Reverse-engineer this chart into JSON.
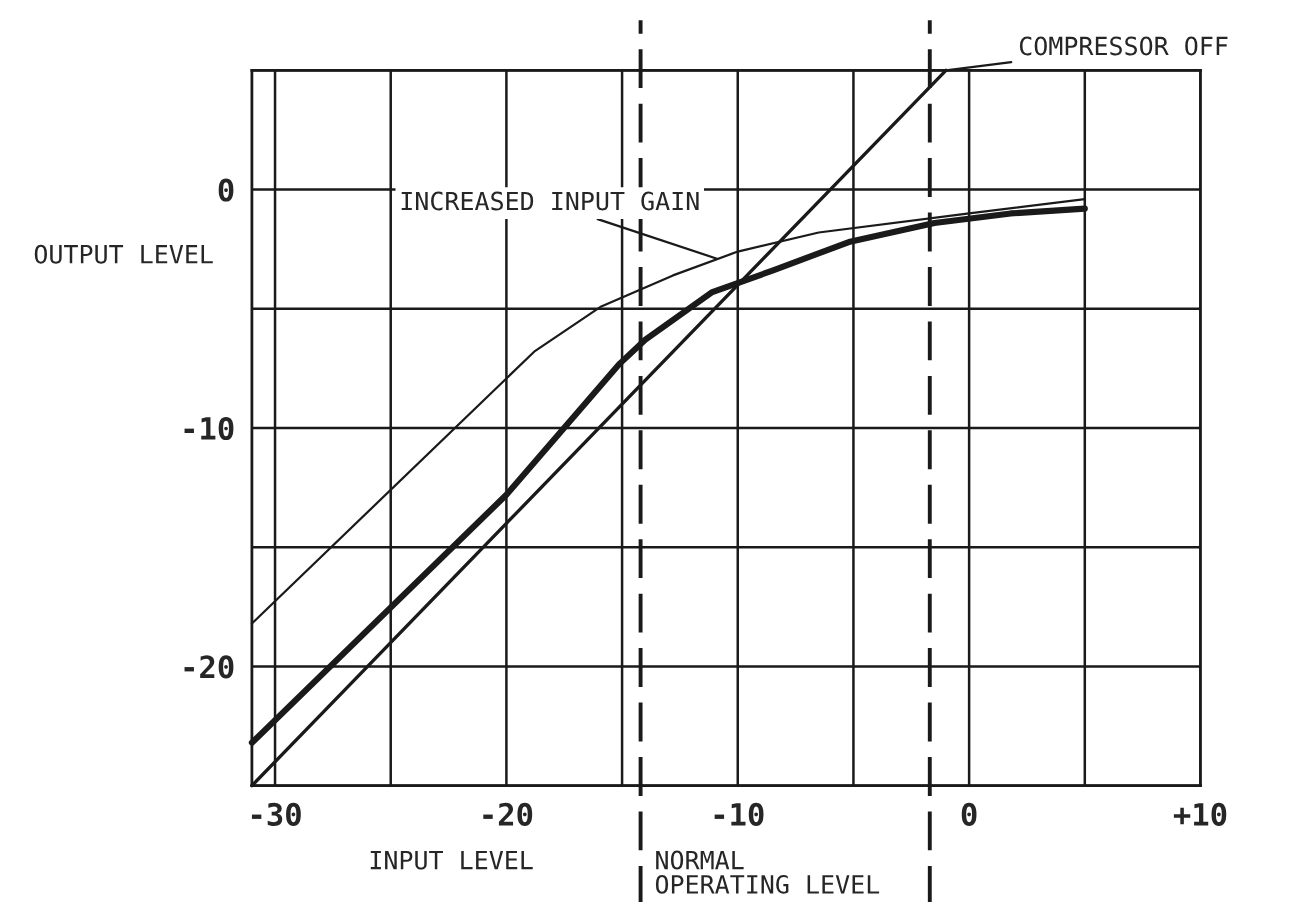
{
  "chart_data": {
    "type": "line",
    "xlabel": "INPUT LEVEL",
    "ylabel": "OUTPUT LEVEL",
    "xlim": [
      -31,
      10
    ],
    "ylim": [
      -25,
      5
    ],
    "xticks": [
      -30,
      {
        "value": -25,
        "label": null
      },
      -20,
      {
        "value": -15,
        "label": null
      },
      -10,
      {
        "value": -5,
        "label": null
      },
      0,
      {
        "value": 5,
        "label": null
      },
      {
        "value": 10,
        "label": "+10"
      }
    ],
    "yticks": [
      {
        "value": -25,
        "label": null
      },
      -20,
      {
        "value": -15,
        "label": null
      },
      -10,
      {
        "value": -5,
        "label": null
      },
      0,
      {
        "value": 5,
        "label": null
      }
    ],
    "grid": true,
    "legend": false,
    "marker": "none",
    "line_style": "solid",
    "series": [
      {
        "name": "COMPRESSOR OFF",
        "color": "#1a1a1a",
        "x": [
          -31,
          -1
        ],
        "values": [
          -25,
          5
        ]
      },
      {
        "color": "#1a1a1a",
        "x": [
          -31,
          -20,
          -15.1,
          -14,
          -11.1,
          -8.5,
          -5.2,
          -1.5,
          1.8,
          5
        ],
        "values": [
          -23.2,
          -12.8,
          -7.3,
          -6.3,
          -4.3,
          -3.4,
          -2.2,
          -1.4,
          -1.0,
          -0.8
        ]
      },
      {
        "name": "INCREASED INPUT GAIN",
        "color": "#1a1a1a",
        "x": [
          -31,
          -18.8,
          -15.9,
          -12.8,
          -10,
          -6.5,
          0,
          5
        ],
        "values": [
          -18.2,
          -6.8,
          -4.9,
          -3.6,
          -2.6,
          -1.8,
          -1.0,
          -0.4
        ]
      }
    ],
    "ref_lines": [
      {
        "axis": "x",
        "value": -14.2,
        "label": "NORMAL\nOPERATING LEVEL",
        "line_style": "dashed",
        "color": "#1a1a1a"
      },
      {
        "axis": "x",
        "value": -1.7,
        "label": null,
        "line_style": "dashed",
        "color": "#1a1a1a"
      }
    ]
  }
}
